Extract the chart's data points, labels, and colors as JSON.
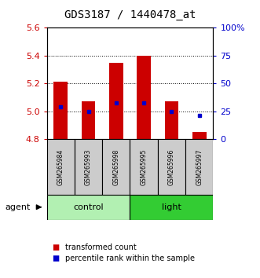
{
  "title": "GDS3187 / 1440478_at",
  "samples": [
    "GSM265984",
    "GSM265993",
    "GSM265998",
    "GSM265995",
    "GSM265996",
    "GSM265997"
  ],
  "groups": [
    "control",
    "control",
    "control",
    "light",
    "light",
    "light"
  ],
  "group_labels": [
    "control",
    "light"
  ],
  "group_colors": [
    "#b2f0b2",
    "#33cc33"
  ],
  "bar_bottom": 4.8,
  "bar_values": [
    5.21,
    5.07,
    5.35,
    5.4,
    5.07,
    4.85
  ],
  "percentile_values": [
    5.03,
    5.0,
    5.06,
    5.06,
    5.0,
    4.97
  ],
  "ylim": [
    4.8,
    5.6
  ],
  "y_ticks": [
    4.8,
    5.0,
    5.2,
    5.4,
    5.6
  ],
  "right_ticks": [
    0,
    25,
    50,
    75,
    100
  ],
  "right_tick_labels": [
    "0",
    "25",
    "50",
    "75",
    "100%"
  ],
  "bar_color": "#CC0000",
  "dot_color": "#0000CC",
  "background_color": "#ffffff",
  "plot_bg": "#ffffff",
  "tick_color_left": "#CC0000",
  "tick_color_right": "#0000CC",
  "bar_width": 0.5,
  "sample_box_color": "#cccccc",
  "figsize": [
    3.31,
    3.54
  ],
  "dpi": 100
}
